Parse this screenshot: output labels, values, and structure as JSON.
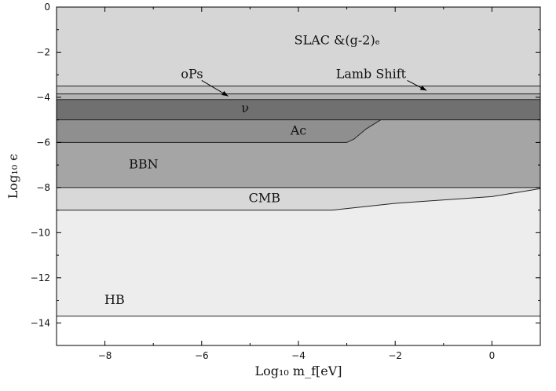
{
  "chart_data": {
    "type": "area",
    "title": "",
    "xlabel": "Log₁₀ m_f[eV]",
    "ylabel": "Log₁₀ ϵ",
    "xlim": [
      -9,
      1
    ],
    "ylim": [
      -15,
      0
    ],
    "xticks": [
      -8,
      -6,
      -4,
      -2,
      0
    ],
    "yticks": [
      0,
      -2,
      -4,
      -6,
      -8,
      -10,
      -12,
      -14
    ],
    "grid": false,
    "regions": [
      {
        "name": "HB",
        "color": "#ededed",
        "boundary": [
          [
            -9,
            -13.7
          ],
          [
            1,
            -13.7
          ]
        ],
        "upper": 0
      },
      {
        "name": "CMB",
        "color": "#d8d8d8",
        "boundary": [
          [
            -9,
            -9.0
          ],
          [
            -3.3,
            -9.0
          ],
          [
            -2.0,
            -8.7
          ],
          [
            0.0,
            -8.4
          ],
          [
            1.0,
            -8.05
          ]
        ],
        "upper": -8.0
      },
      {
        "name": "BBN",
        "color": "#a5a5a5",
        "boundary": [
          [
            -9,
            -8.0
          ],
          [
            1,
            -8.0
          ]
        ],
        "upper": -5.0
      },
      {
        "name": "Ac",
        "color": "#8f8f8f",
        "boundary": [
          [
            -9,
            -6.0
          ],
          [
            -3.0,
            -6.0
          ],
          [
            -2.85,
            -5.85
          ],
          [
            -2.6,
            -5.4
          ],
          [
            -2.3,
            -5.0
          ]
        ],
        "upper": -5.0
      },
      {
        "name": "ν",
        "color": "#707070",
        "boundary": [
          [
            -9,
            -5.0
          ],
          [
            1,
            -5.0
          ]
        ],
        "upper": -4.1
      },
      {
        "name": "oPs",
        "color": "#b3b3b3",
        "boundary": [
          [
            -9,
            -4.1
          ],
          [
            1,
            -4.1
          ]
        ],
        "upper": -3.85
      },
      {
        "name": "Lamb Shift",
        "color": "#c6c6c6",
        "boundary": [
          [
            -9,
            -3.85
          ],
          [
            1,
            -3.85
          ]
        ],
        "upper": -3.5
      },
      {
        "name": "SLAC &(g-2)ₑ",
        "color": "#d6d6d6",
        "boundary": [
          [
            -9,
            -3.5
          ],
          [
            1,
            -3.5
          ]
        ],
        "upper": 0
      }
    ],
    "annotations": [
      {
        "text": "SLAC &(g-2)ₑ",
        "x": -3.2,
        "y": -1.5
      },
      {
        "text": "oPs",
        "x": -6.2,
        "y": -3.0
      },
      {
        "text": "Lamb Shift",
        "x": -2.5,
        "y": -3.0
      },
      {
        "text": "ν",
        "x": -5.1,
        "y": -4.5
      },
      {
        "text": "Ac",
        "x": -4.0,
        "y": -5.5
      },
      {
        "text": "BBN",
        "x": -7.2,
        "y": -7.0
      },
      {
        "text": "CMB",
        "x": -4.7,
        "y": -8.5
      },
      {
        "text": "HB",
        "x": -7.8,
        "y": -13.0
      }
    ],
    "arrows": [
      {
        "from": [
          -6.0,
          -3.25
        ],
        "to": [
          -5.45,
          -3.95
        ]
      },
      {
        "from": [
          -1.75,
          -3.25
        ],
        "to": [
          -1.35,
          -3.7
        ]
      }
    ]
  }
}
